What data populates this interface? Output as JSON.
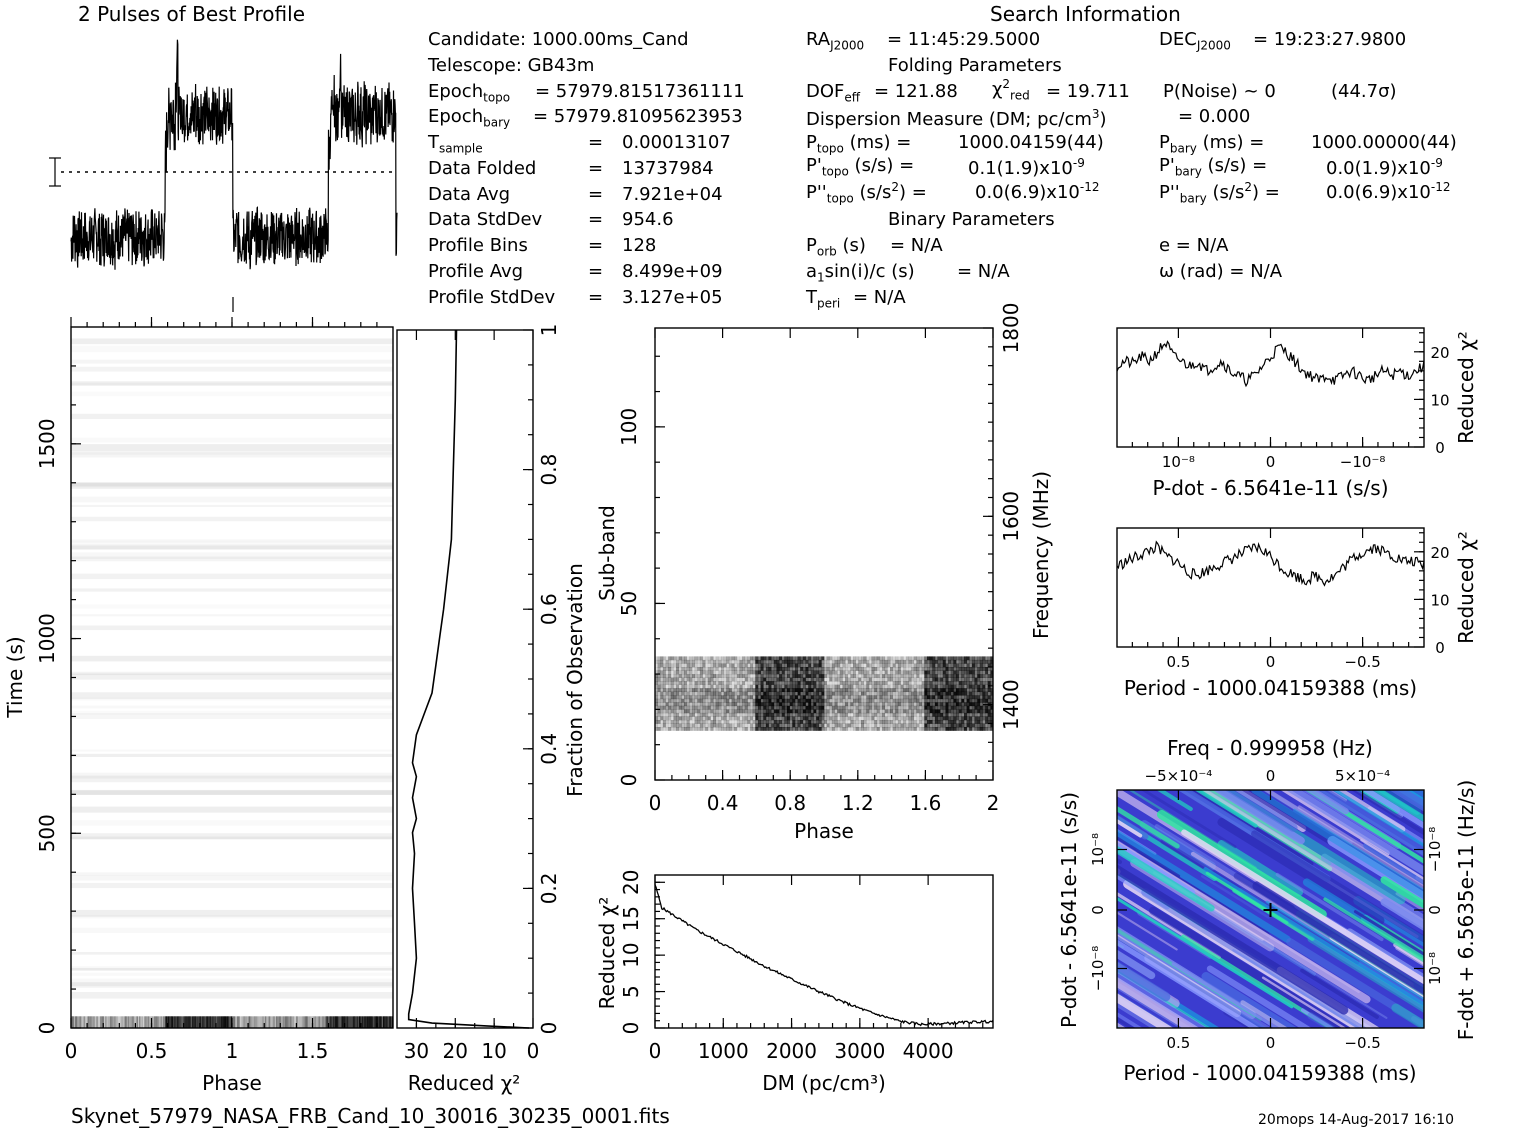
{
  "header": {
    "profile_title": "2 Pulses of Best Profile",
    "search_title": "Search Information",
    "folding_title": "Folding Parameters",
    "binary_title": "Binary Parameters",
    "filename": "Skynet_57979_NASA_FRB_Cand_10_30016_30235_0001.fits",
    "footer": "20mops 14-Aug-2017 16:10"
  },
  "info": {
    "candidate": "Candidate:  1000.00ms_Cand",
    "telescope": "Telescope:  GB43m",
    "epoch_topo": "= 57979.81517361111",
    "epoch_bary": "= 57979.81095623953",
    "t_sample": "0.00013107",
    "data_folded": "13737984",
    "data_avg": "7.921e+04",
    "data_stddev": "954.6",
    "profile_bins": "128",
    "profile_avg": "8.499e+09",
    "profile_stddev": "3.127e+05",
    "ra": "= 11:45:29.5000",
    "dec": "= 19:23:27.9800",
    "dof_eff": "= 121.88",
    "chi2_red": "= 19.711",
    "p_noise": "P(Noise) ~ 0",
    "sigma": "(44.7σ)",
    "dm_value": "= 0.000",
    "p_topo": "1000.04159(44)",
    "p_bary": "1000.00000(44)",
    "pd_topo": "0.1(1.9)x10",
    "pd_topo_exp": "-9",
    "pd_bary": "0.0(1.9)x10",
    "pd_bary_exp": "-9",
    "pdd_topo": "0.0(6.9)x10",
    "pdd_topo_exp": "-12",
    "pdd_bary": "0.0(6.9)x10",
    "pdd_bary_exp": "-12",
    "p_orb": "= N/A",
    "a1sini": "= N/A",
    "t_peri": "= N/A",
    "e": "e = N/A",
    "omega": "ω (rad) = N/A"
  },
  "chart_data": [
    {
      "id": "profile",
      "type": "line",
      "title": "2 Pulses of Best Profile",
      "description_values": {
        "phase_range": [
          0,
          2
        ],
        "on_pulse_phase": [
          [
            0.58,
            1.0
          ],
          [
            1.58,
            2.0
          ]
        ]
      },
      "profile_shape_128": [
        0.18,
        0.2,
        0.22,
        0.19,
        0.21,
        0.17,
        0.2,
        0.23,
        0.19,
        0.18,
        0.2,
        0.21,
        0.16,
        0.19,
        0.22,
        0.18,
        0.2,
        0.19,
        0.21,
        0.18,
        0.2,
        0.22,
        0.19,
        0.17,
        0.21,
        0.2,
        0.18,
        0.19,
        0.22,
        0.2,
        0.21,
        0.18,
        0.19,
        0.2,
        0.17,
        0.21,
        0.19,
        0.2,
        0.22,
        0.18,
        0.2,
        0.19,
        0.21,
        0.18,
        0.2,
        0.19,
        0.22,
        0.2,
        0.18,
        0.21,
        0.19,
        0.2,
        0.18,
        0.21,
        0.2,
        0.19,
        0.22,
        0.18,
        0.2,
        0.21,
        0.19,
        0.2,
        0.18,
        0.21,
        0.2,
        0.19,
        0.2,
        0.18,
        0.21,
        0.2,
        0.19,
        0.22,
        0.19,
        0.2,
        0.55,
        0.62,
        0.7,
        0.65,
        0.75,
        0.68,
        0.72,
        0.66,
        0.8,
        0.9,
        0.7,
        0.68,
        0.74,
        0.66,
        0.71,
        0.69,
        0.73,
        0.68,
        0.7,
        0.72,
        0.66,
        0.7,
        0.68,
        0.74,
        0.69,
        0.71,
        0.67,
        0.7,
        0.73,
        0.68,
        0.71,
        0.69,
        0.72,
        0.66,
        0.7,
        0.68,
        0.74,
        0.7,
        0.69,
        0.71,
        0.68,
        0.72,
        0.7,
        0.69,
        0.71,
        0.68,
        0.7,
        0.72,
        0.69,
        0.7,
        0.68,
        0.71,
        0.7,
        0.2
      ]
    },
    {
      "id": "time_phase",
      "type": "heatmap",
      "xlabel": "Phase",
      "ylabel": "Time (s)",
      "xlim": [
        0,
        2
      ],
      "ylim": [
        0,
        1800
      ],
      "x_ticks": [
        "0",
        "0.5",
        "1",
        "1.5"
      ],
      "y_ticks": [
        "0",
        "500",
        "1000",
        "1500"
      ],
      "signal_time_range": [
        0,
        30
      ]
    },
    {
      "id": "reduced_chi2_vs_fraction",
      "type": "line",
      "xlabel": "Reduced χ²",
      "ylabel": "Fraction of Observation",
      "xlim": [
        35,
        0
      ],
      "ylim": [
        0,
        1
      ],
      "x_ticks": [
        "30",
        "20",
        "10",
        "0"
      ],
      "y_ticks": [
        "0",
        "0.2",
        "0.4",
        "0.6",
        "0.8",
        "1"
      ],
      "points": [
        [
          1,
          0.0
        ],
        [
          12,
          0.003
        ],
        [
          26,
          0.007
        ],
        [
          32,
          0.012
        ],
        [
          32,
          0.02
        ],
        [
          31,
          0.05
        ],
        [
          30,
          0.1
        ],
        [
          30.5,
          0.15
        ],
        [
          31,
          0.2
        ],
        [
          30.5,
          0.25
        ],
        [
          31,
          0.28
        ],
        [
          30,
          0.3
        ],
        [
          31,
          0.33
        ],
        [
          30,
          0.36
        ],
        [
          31,
          0.38
        ],
        [
          30,
          0.42
        ],
        [
          28,
          0.45
        ],
        [
          26,
          0.48
        ],
        [
          25,
          0.52
        ],
        [
          24,
          0.56
        ],
        [
          23,
          0.6
        ],
        [
          22,
          0.65
        ],
        [
          21,
          0.7
        ],
        [
          20.5,
          0.8
        ],
        [
          20,
          0.9
        ],
        [
          19.7,
          1.0
        ]
      ]
    },
    {
      "id": "subband_phase",
      "type": "heatmap",
      "xlabel": "Phase",
      "ylabel": "Sub-band",
      "y2label": "Frequency (MHz)",
      "xlim": [
        0,
        2
      ],
      "ylim": [
        0,
        128
      ],
      "y2lim": [
        1320,
        1800
      ],
      "x_ticks": [
        "0",
        "0.4",
        "0.8",
        "1.2",
        "1.6",
        "2"
      ],
      "y_ticks": [
        "0",
        "50",
        "100"
      ],
      "y2_ticks": [
        "1400",
        "1600",
        "1800"
      ],
      "signal_subbands": [
        14,
        35
      ]
    },
    {
      "id": "dm_chi2",
      "type": "line",
      "xlabel": "DM (pc/cm³)",
      "ylabel": "Reduced χ²",
      "xlim": [
        0,
        4950
      ],
      "ylim": [
        0,
        21
      ],
      "x_ticks": [
        "0",
        "1000",
        "2000",
        "3000",
        "4000"
      ],
      "y_ticks": [
        "0",
        "5",
        "10",
        "15",
        "20"
      ],
      "x": [
        0,
        100,
        300,
        600,
        1000,
        1300,
        1600,
        2000,
        2400,
        2800,
        3200,
        3600,
        3900,
        4200,
        4600,
        4950
      ],
      "y": [
        19.7,
        16.5,
        15.3,
        13.5,
        11.5,
        10.0,
        8.5,
        6.7,
        5.0,
        3.4,
        2.0,
        0.9,
        0.5,
        0.6,
        0.8,
        0.9
      ]
    },
    {
      "id": "pdot_chi2",
      "type": "line",
      "xlabel": "P-dot - 6.5641e-11 (s/s)",
      "ylabel": "Reduced χ²",
      "ylim": [
        0,
        25
      ],
      "x_ticks": [
        "10⁻⁸",
        "0",
        "−10⁻⁸"
      ],
      "y_ticks": [
        "0",
        "10",
        "20"
      ],
      "y": [
        17,
        18,
        17.5,
        19,
        18,
        20,
        22,
        19,
        18,
        17,
        18,
        16,
        17,
        18,
        16,
        15,
        14,
        15,
        17,
        19,
        21,
        20,
        18,
        16,
        15,
        14,
        15,
        14,
        15,
        16,
        15,
        14,
        15,
        16,
        15,
        16,
        15,
        16,
        17
      ]
    },
    {
      "id": "period_chi2",
      "type": "line",
      "xlabel": "Period - 1000.04159388 (ms)",
      "ylabel": "Reduced χ²",
      "ylim": [
        0,
        25
      ],
      "x_ticks": [
        "0.5",
        "0",
        "−0.5"
      ],
      "y_ticks": [
        "0",
        "10",
        "20"
      ],
      "y": [
        17,
        18,
        19,
        20,
        21,
        19,
        18,
        16,
        15,
        16,
        17,
        18,
        19,
        20,
        21,
        20,
        18,
        16,
        15,
        14,
        15,
        14,
        15,
        17,
        19,
        20,
        21,
        20,
        19,
        18,
        18,
        17
      ]
    },
    {
      "id": "ppdot_plane",
      "type": "heatmap",
      "title": "Freq - 0.999958 (Hz)",
      "xlabel": "Period - 1000.04159388 (ms)",
      "ylabel": "P-dot - 6.5641e-11 (s/s)",
      "y2label": "F-dot + 6.5635e-11 (Hz/s)",
      "x_ticks": [
        "0.5",
        "0",
        "−0.5"
      ],
      "x2_ticks": [
        "−5×10⁻⁴",
        "0",
        "5×10⁻⁴"
      ],
      "y_ticks": [
        "10⁻⁸",
        "0",
        "−10⁻⁸"
      ],
      "y2_ticks": [
        "−10⁻⁸",
        "0",
        "10⁻⁸"
      ],
      "best_point": [
        0,
        0
      ]
    }
  ]
}
